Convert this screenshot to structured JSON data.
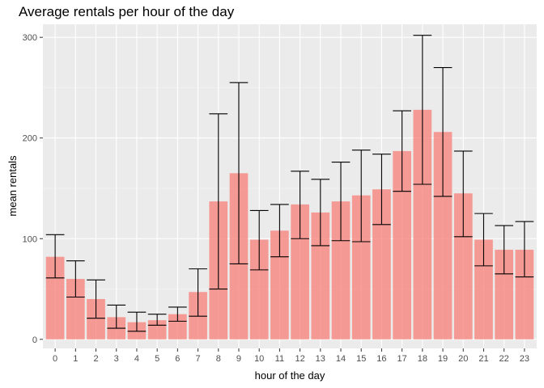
{
  "chart_data": {
    "type": "bar",
    "title": "Average rentals per hour of the day",
    "xlabel": "hour of the day",
    "ylabel": "mean rentals",
    "categories": [
      "0",
      "1",
      "2",
      "3",
      "4",
      "5",
      "6",
      "7",
      "8",
      "9",
      "10",
      "11",
      "12",
      "13",
      "14",
      "15",
      "16",
      "17",
      "18",
      "19",
      "20",
      "21",
      "22",
      "23"
    ],
    "series": [
      {
        "values": [
          82,
          60,
          40,
          22,
          17,
          19,
          25,
          47,
          137,
          165,
          99,
          108,
          134,
          126,
          137,
          143,
          149,
          187,
          228,
          206,
          145,
          99,
          89,
          89
        ],
        "error_low": [
          61,
          42,
          21,
          11,
          8,
          14,
          18,
          23,
          50,
          75,
          69,
          82,
          100,
          93,
          98,
          97,
          114,
          147,
          154,
          142,
          102,
          73,
          65,
          62
        ],
        "error_high": [
          104,
          78,
          59,
          34,
          27,
          25,
          32,
          70,
          224,
          255,
          128,
          134,
          167,
          159,
          176,
          188,
          184,
          227,
          302,
          270,
          187,
          125,
          113,
          117
        ]
      }
    ],
    "yticks": [
      0,
      100,
      200,
      300
    ],
    "ylim": [
      -9,
      313
    ],
    "grid": true,
    "colors": {
      "bar": "#f8766d",
      "panel": "#ebebeb",
      "grid_major": "#ffffff",
      "errorbar": "#000000"
    }
  }
}
